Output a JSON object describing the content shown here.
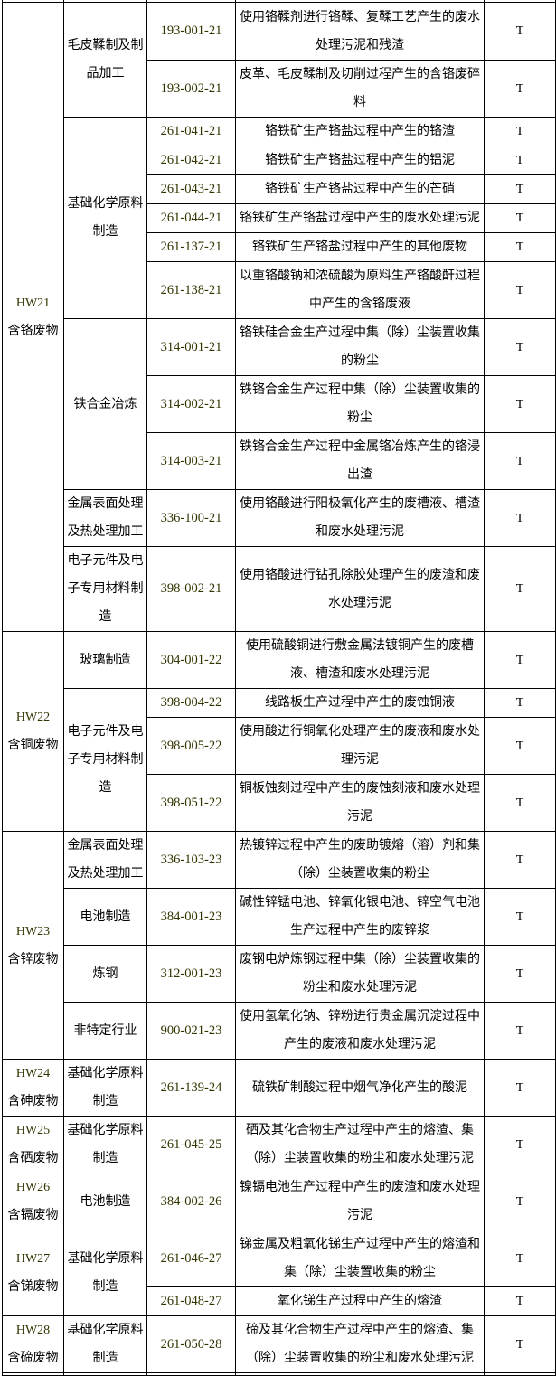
{
  "hazard_column": "T",
  "groups": [
    {
      "code": "HW21",
      "name": "含铬废物",
      "industries": [
        {
          "name": "毛皮鞣制及制品加工",
          "items": [
            {
              "code": "193-001-21",
              "desc": "使用铬鞣剂进行铬鞣、复鞣工艺产生的废水处理污泥和残渣",
              "hazard": "T"
            },
            {
              "code": "193-002-21",
              "desc": "皮革、毛皮鞣制及切削过程产生的含铬废碎料",
              "hazard": "T"
            }
          ]
        },
        {
          "name": "基础化学原料制造",
          "items": [
            {
              "code": "261-041-21",
              "desc": "铬铁矿生产铬盐过程中产生的铬渣",
              "hazard": "T"
            },
            {
              "code": "261-042-21",
              "desc": "铬铁矿生产铬盐过程中产生的铝泥",
              "hazard": "T"
            },
            {
              "code": "261-043-21",
              "desc": "铬铁矿生产铬盐过程中产生的芒硝",
              "hazard": "T"
            },
            {
              "code": "261-044-21",
              "desc": "铬铁矿生产铬盐过程中产生的废水处理污泥",
              "hazard": "T"
            },
            {
              "code": "261-137-21",
              "desc": "铬铁矿生产铬盐过程中产生的其他废物",
              "hazard": "T"
            },
            {
              "code": "261-138-21",
              "desc": "以重铬酸钠和浓硫酸为原料生产铬酸酐过程中产生的含铬废液",
              "hazard": "T"
            }
          ]
        },
        {
          "name": "铁合金冶炼",
          "items": [
            {
              "code": "314-001-21",
              "desc": "铬铁硅合金生产过程中集（除）尘装置收集的粉尘",
              "hazard": "T"
            },
            {
              "code": "314-002-21",
              "desc": "铁铬合金生产过程中集（除）尘装置收集的粉尘",
              "hazard": "T"
            },
            {
              "code": "314-003-21",
              "desc": "铁铬合金生产过程中金属铬冶炼产生的铬浸出渣",
              "hazard": "T"
            }
          ]
        },
        {
          "name": "金属表面处理及热处理加工",
          "items": [
            {
              "code": "336-100-21",
              "desc": "使用铬酸进行阳极氧化产生的废槽液、槽渣和废水处理污泥",
              "hazard": "T"
            }
          ]
        },
        {
          "name": "电子元件及电子专用材料制造",
          "items": [
            {
              "code": "398-002-21",
              "desc": "使用铬酸进行钻孔除胶处理产生的废渣和废水处理污泥",
              "hazard": "T"
            }
          ]
        }
      ]
    },
    {
      "code": "HW22",
      "name": "含铜废物",
      "industries": [
        {
          "name": "玻璃制造",
          "items": [
            {
              "code": "304-001-22",
              "desc": "使用硫酸铜进行敷金属法镀铜产生的废槽液、槽渣和废水处理污泥",
              "hazard": "T"
            }
          ]
        },
        {
          "name": "电子元件及电子专用材料制造",
          "items": [
            {
              "code": "398-004-22",
              "desc": "线路板生产过程中产生的废蚀铜液",
              "hazard": "T"
            },
            {
              "code": "398-005-22",
              "desc": "使用酸进行铜氧化处理产生的废液和废水处理污泥",
              "hazard": "T"
            },
            {
              "code": "398-051-22",
              "desc": "铜板蚀刻过程中产生的废蚀刻液和废水处理污泥",
              "hazard": "T"
            }
          ]
        }
      ]
    },
    {
      "code": "HW23",
      "name": "含锌废物",
      "industries": [
        {
          "name": "金属表面处理及热处理加工",
          "items": [
            {
              "code": "336-103-23",
              "desc": "热镀锌过程中产生的废助镀熔（溶）剂和集（除）尘装置收集的粉尘",
              "hazard": "T"
            }
          ]
        },
        {
          "name": "电池制造",
          "items": [
            {
              "code": "384-001-23",
              "desc": "碱性锌锰电池、锌氧化银电池、锌空气电池生产过程中产生的废锌浆",
              "hazard": "T"
            }
          ]
        },
        {
          "name": "炼钢",
          "items": [
            {
              "code": "312-001-23",
              "desc": "废钢电炉炼钢过程中集（除）尘装置收集的粉尘和废水处理污泥",
              "hazard": "T"
            }
          ]
        },
        {
          "name": "非特定行业",
          "items": [
            {
              "code": "900-021-23",
              "desc": "使用氢氧化钠、锌粉进行贵金属沉淀过程中产生的废液和废水处理污泥",
              "hazard": "T"
            }
          ]
        }
      ]
    },
    {
      "code": "HW24",
      "name": "含砷废物",
      "industries": [
        {
          "name": "基础化学原料制造",
          "items": [
            {
              "code": "261-139-24",
              "desc": "硫铁矿制酸过程中烟气净化产生的酸泥",
              "hazard": "T"
            }
          ]
        }
      ]
    },
    {
      "code": "HW25",
      "name": "含硒废物",
      "industries": [
        {
          "name": "基础化学原料制造",
          "items": [
            {
              "code": "261-045-25",
              "desc": "硒及其化合物生产过程中产生的熔渣、集（除）尘装置收集的粉尘和废水处理污泥",
              "hazard": "T"
            }
          ]
        }
      ]
    },
    {
      "code": "HW26",
      "name": "含镉废物",
      "industries": [
        {
          "name": "电池制造",
          "items": [
            {
              "code": "384-002-26",
              "desc": "镍镉电池生产过程中产生的废渣和废水处理污泥",
              "hazard": "T"
            }
          ]
        }
      ]
    },
    {
      "code": "HW27",
      "name": "含锑废物",
      "industries": [
        {
          "name": "基础化学原料制造",
          "items": [
            {
              "code": "261-046-27",
              "desc": "锑金属及粗氧化锑生产过程中产生的熔渣和集（除）尘装置收集的粉尘",
              "hazard": "T"
            },
            {
              "code": "261-048-27",
              "desc": "氧化锑生产过程中产生的熔渣",
              "hazard": "T"
            }
          ]
        }
      ]
    },
    {
      "code": "HW28",
      "name": "含碲废物",
      "industries": [
        {
          "name": "基础化学原料制造",
          "items": [
            {
              "code": "261-050-28",
              "desc": "碲及其化合物生产过程中产生的熔渣、集（除）尘装置收集的粉尘和废水处理污泥",
              "hazard": "T"
            }
          ]
        }
      ]
    }
  ]
}
